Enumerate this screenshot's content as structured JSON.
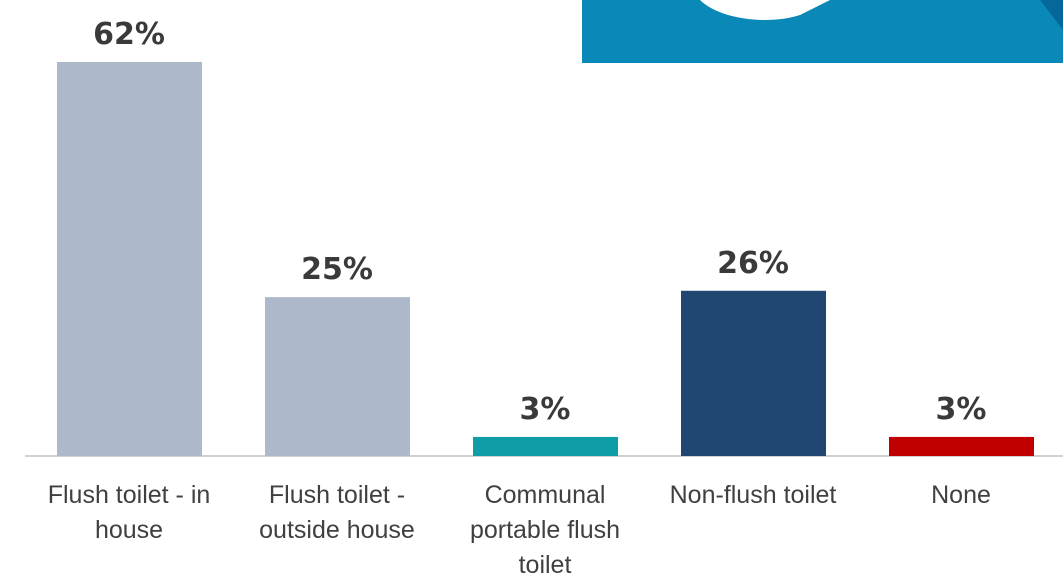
{
  "chart_data": {
    "type": "bar",
    "categories": [
      "Flush toilet - in house",
      "Flush toilet - outside house",
      "Communal portable flush toilet",
      "Non-flush toilet",
      "None"
    ],
    "values": [
      62,
      25,
      3,
      26,
      3
    ],
    "value_labels": [
      "62%",
      "25%",
      "3%",
      "26%",
      "3%"
    ],
    "colors": [
      "#adb9ca",
      "#adb9ca",
      "#0f9ea8",
      "#1f4771",
      "#c00000"
    ]
  }
}
